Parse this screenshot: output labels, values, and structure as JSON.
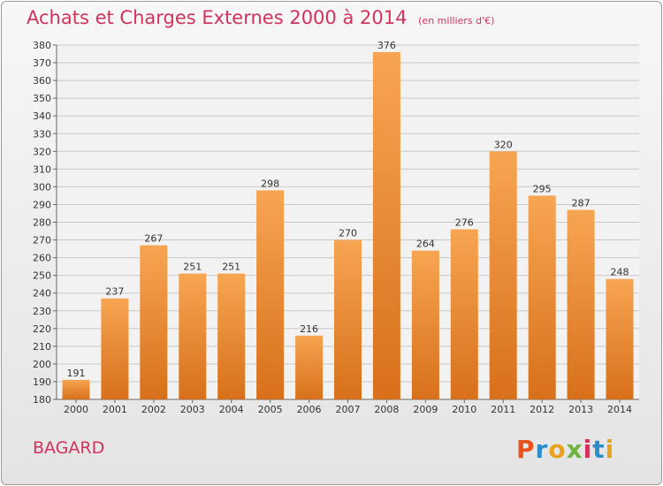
{
  "header": {
    "title": "Achats et Charges Externes 2000 à 2014",
    "subtitle": "(en milliers d'€)"
  },
  "footer": {
    "place": "BAGARD",
    "logo_text": "Proxiti",
    "logo_colors": [
      "#e8511c",
      "#2c8ec9",
      "#e8a21c",
      "#6fb43f",
      "#d2335c",
      "#2c8ec9",
      "#e8a21c"
    ]
  },
  "colors": {
    "title": "#d2335c",
    "bar_light": "#f7a552",
    "bar_dark": "#d8701a",
    "grid": "#c8c8c8"
  },
  "chart_data": {
    "type": "bar",
    "title": "Achats et Charges Externes 2000 à 2014",
    "subtitle": "(en milliers d'€)",
    "categories": [
      "2000",
      "2001",
      "2002",
      "2003",
      "2004",
      "2005",
      "2006",
      "2007",
      "2008",
      "2009",
      "2010",
      "2011",
      "2012",
      "2013",
      "2014"
    ],
    "values": [
      191,
      237,
      267,
      251,
      251,
      298,
      216,
      270,
      376,
      264,
      276,
      320,
      295,
      287,
      248
    ],
    "ylim": [
      180,
      380
    ],
    "ytick_step": 10,
    "grid": true,
    "data_labels": true,
    "xlabel": "",
    "ylabel": ""
  }
}
